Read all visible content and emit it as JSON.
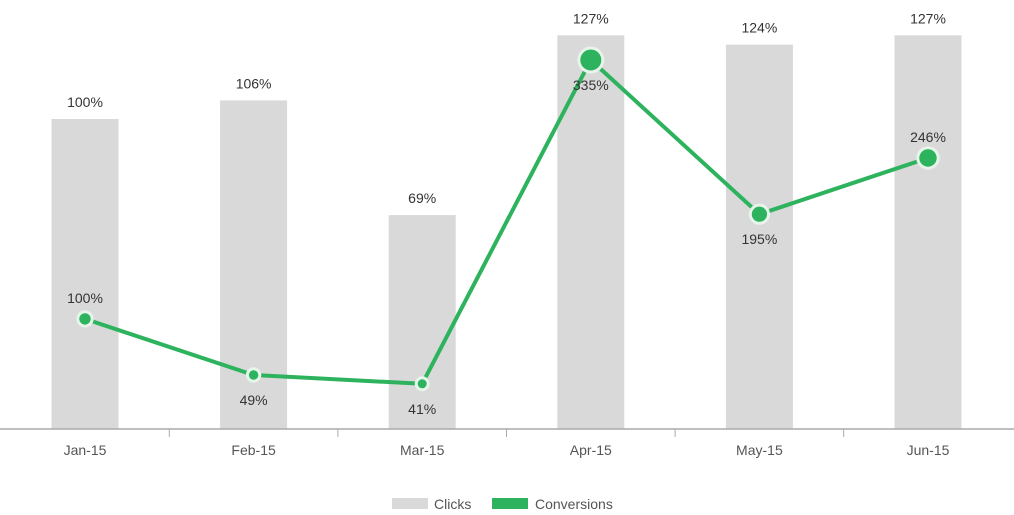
{
  "chart_data": {
    "type": "bar",
    "categories": [
      "Jan-15",
      "Feb-15",
      "Mar-15",
      "Apr-15",
      "May-15",
      "Jun-15"
    ],
    "series": [
      {
        "name": "Clicks",
        "type": "bar",
        "color": "#d9d9d9",
        "values": [
          100,
          106,
          69,
          127,
          124,
          127
        ],
        "labels": [
          "100%",
          "106%",
          "69%",
          "127%",
          "124%",
          "127%"
        ]
      },
      {
        "name": "Conversions",
        "type": "line",
        "color": "#2db35d",
        "values": [
          100,
          49,
          41,
          335,
          195,
          246
        ],
        "labels": [
          "100%",
          "49%",
          "41%",
          "335%",
          "195%",
          "246%"
        ]
      }
    ],
    "legend_position": "bottom",
    "grid": false
  }
}
